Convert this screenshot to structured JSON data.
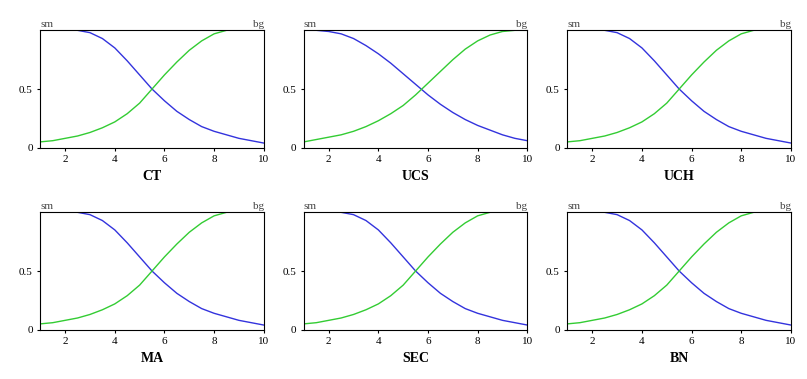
{
  "chart_data": [
    {
      "type": "line",
      "title": "CT",
      "xlim": [
        1,
        10
      ],
      "ylim": [
        0,
        1
      ],
      "xticks": [
        2,
        4,
        6,
        8,
        10
      ],
      "yticks": [
        0,
        0.5
      ],
      "series": [
        {
          "name": "sm",
          "color": "#3333dd",
          "x": [
            2.5,
            3,
            3.5,
            4,
            4.5,
            5,
            5.5,
            6,
            6.5,
            7,
            7.5,
            8,
            8.5,
            9,
            9.5,
            10
          ],
          "values": [
            1,
            0.98,
            0.93,
            0.85,
            0.74,
            0.62,
            0.5,
            0.4,
            0.31,
            0.24,
            0.18,
            0.14,
            0.11,
            0.08,
            0.06,
            0.04
          ]
        },
        {
          "name": "bg",
          "color": "#33cc33",
          "x": [
            1,
            1.5,
            2,
            2.5,
            3,
            3.5,
            4,
            4.5,
            5,
            5.5,
            6,
            6.5,
            7,
            7.5,
            8,
            8.5
          ],
          "values": [
            0.05,
            0.06,
            0.08,
            0.1,
            0.13,
            0.17,
            0.22,
            0.29,
            0.38,
            0.5,
            0.62,
            0.73,
            0.83,
            0.91,
            0.97,
            1.0
          ]
        }
      ]
    },
    {
      "type": "line",
      "title": "UCS",
      "xlim": [
        1,
        10
      ],
      "ylim": [
        0,
        1
      ],
      "xticks": [
        2,
        4,
        6,
        8,
        10
      ],
      "yticks": [
        0,
        0.5
      ],
      "series": [
        {
          "name": "sm",
          "color": "#3333dd",
          "x": [
            1,
            1.5,
            2,
            2.5,
            3,
            3.5,
            4,
            4.5,
            5,
            5.5,
            6,
            6.5,
            7,
            7.5,
            8,
            8.5,
            9,
            9.5,
            10
          ],
          "values": [
            1,
            1,
            0.99,
            0.97,
            0.93,
            0.87,
            0.8,
            0.72,
            0.63,
            0.54,
            0.45,
            0.37,
            0.3,
            0.24,
            0.19,
            0.15,
            0.11,
            0.08,
            0.06
          ]
        },
        {
          "name": "bg",
          "color": "#33cc33",
          "x": [
            1,
            1.5,
            2,
            2.5,
            3,
            3.5,
            4,
            4.5,
            5,
            5.5,
            6,
            6.5,
            7,
            7.5,
            8,
            8.5,
            9,
            9.5,
            10
          ],
          "values": [
            0.05,
            0.07,
            0.09,
            0.11,
            0.14,
            0.18,
            0.23,
            0.29,
            0.36,
            0.45,
            0.55,
            0.65,
            0.75,
            0.84,
            0.91,
            0.96,
            0.99,
            1.0,
            1.0
          ]
        }
      ]
    },
    {
      "type": "line",
      "title": "UCH",
      "xlim": [
        1,
        10
      ],
      "ylim": [
        0,
        1
      ],
      "xticks": [
        2,
        4,
        6,
        8,
        10
      ],
      "yticks": [
        0,
        0.5
      ],
      "series": [
        {
          "name": "sm",
          "color": "#3333dd",
          "x": [
            2.5,
            3,
            3.5,
            4,
            4.5,
            5,
            5.5,
            6,
            6.5,
            7,
            7.5,
            8,
            8.5,
            9,
            9.5,
            10
          ],
          "values": [
            1,
            0.98,
            0.93,
            0.85,
            0.74,
            0.62,
            0.5,
            0.4,
            0.31,
            0.24,
            0.18,
            0.14,
            0.11,
            0.08,
            0.06,
            0.04
          ]
        },
        {
          "name": "bg",
          "color": "#33cc33",
          "x": [
            1,
            1.5,
            2,
            2.5,
            3,
            3.5,
            4,
            4.5,
            5,
            5.5,
            6,
            6.5,
            7,
            7.5,
            8,
            8.5
          ],
          "values": [
            0.05,
            0.06,
            0.08,
            0.1,
            0.13,
            0.17,
            0.22,
            0.29,
            0.38,
            0.5,
            0.62,
            0.73,
            0.83,
            0.91,
            0.97,
            1.0
          ]
        }
      ]
    },
    {
      "type": "line",
      "title": "MA",
      "xlim": [
        1,
        10
      ],
      "ylim": [
        0,
        1
      ],
      "xticks": [
        2,
        4,
        6,
        8,
        10
      ],
      "yticks": [
        0,
        0.5
      ],
      "series": [
        {
          "name": "sm",
          "color": "#3333dd",
          "x": [
            2.5,
            3,
            3.5,
            4,
            4.5,
            5,
            5.5,
            6,
            6.5,
            7,
            7.5,
            8,
            8.5,
            9,
            9.5,
            10
          ],
          "values": [
            1,
            0.98,
            0.93,
            0.85,
            0.74,
            0.62,
            0.5,
            0.4,
            0.31,
            0.24,
            0.18,
            0.14,
            0.11,
            0.08,
            0.06,
            0.04
          ]
        },
        {
          "name": "bg",
          "color": "#33cc33",
          "x": [
            1,
            1.5,
            2,
            2.5,
            3,
            3.5,
            4,
            4.5,
            5,
            5.5,
            6,
            6.5,
            7,
            7.5,
            8,
            8.5
          ],
          "values": [
            0.05,
            0.06,
            0.08,
            0.1,
            0.13,
            0.17,
            0.22,
            0.29,
            0.38,
            0.5,
            0.62,
            0.73,
            0.83,
            0.91,
            0.97,
            1.0
          ]
        }
      ]
    },
    {
      "type": "line",
      "title": "SEC",
      "xlim": [
        1,
        10
      ],
      "ylim": [
        0,
        1
      ],
      "xticks": [
        2,
        4,
        6,
        8,
        10
      ],
      "yticks": [
        0,
        0.5
      ],
      "series": [
        {
          "name": "sm",
          "color": "#3333dd",
          "x": [
            2.5,
            3,
            3.5,
            4,
            4.5,
            5,
            5.5,
            6,
            6.5,
            7,
            7.5,
            8,
            8.5,
            9,
            9.5,
            10
          ],
          "values": [
            1,
            0.98,
            0.93,
            0.85,
            0.74,
            0.62,
            0.5,
            0.4,
            0.31,
            0.24,
            0.18,
            0.14,
            0.11,
            0.08,
            0.06,
            0.04
          ]
        },
        {
          "name": "bg",
          "color": "#33cc33",
          "x": [
            1,
            1.5,
            2,
            2.5,
            3,
            3.5,
            4,
            4.5,
            5,
            5.5,
            6,
            6.5,
            7,
            7.5,
            8,
            8.5
          ],
          "values": [
            0.05,
            0.06,
            0.08,
            0.1,
            0.13,
            0.17,
            0.22,
            0.29,
            0.38,
            0.5,
            0.62,
            0.73,
            0.83,
            0.91,
            0.97,
            1.0
          ]
        }
      ]
    },
    {
      "type": "line",
      "title": "BN",
      "xlim": [
        1,
        10
      ],
      "ylim": [
        0,
        1
      ],
      "xticks": [
        2,
        4,
        6,
        8,
        10
      ],
      "yticks": [
        0,
        0.5
      ],
      "series": [
        {
          "name": "sm",
          "color": "#3333dd",
          "x": [
            2.5,
            3,
            3.5,
            4,
            4.5,
            5,
            5.5,
            6,
            6.5,
            7,
            7.5,
            8,
            8.5,
            9,
            9.5,
            10
          ],
          "values": [
            1,
            0.98,
            0.93,
            0.85,
            0.74,
            0.62,
            0.5,
            0.4,
            0.31,
            0.24,
            0.18,
            0.14,
            0.11,
            0.08,
            0.06,
            0.04
          ]
        },
        {
          "name": "bg",
          "color": "#33cc33",
          "x": [
            1,
            1.5,
            2,
            2.5,
            3,
            3.5,
            4,
            4.5,
            5,
            5.5,
            6,
            6.5,
            7,
            7.5,
            8,
            8.5
          ],
          "values": [
            0.05,
            0.06,
            0.08,
            0.1,
            0.13,
            0.17,
            0.22,
            0.29,
            0.38,
            0.5,
            0.62,
            0.73,
            0.83,
            0.91,
            0.97,
            1.0
          ]
        }
      ]
    }
  ]
}
